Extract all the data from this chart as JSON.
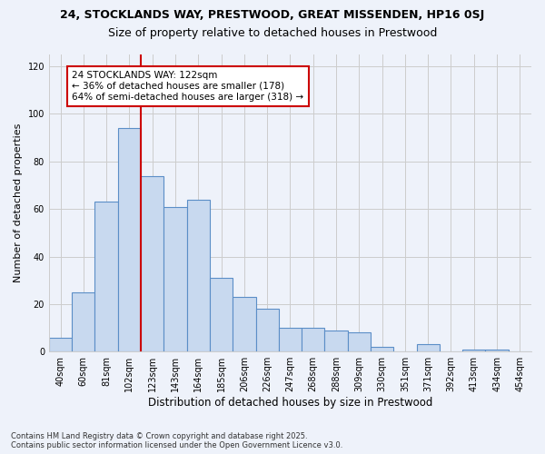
{
  "title_line1": "24, STOCKLANDS WAY, PRESTWOOD, GREAT MISSENDEN, HP16 0SJ",
  "title_line2": "Size of property relative to detached houses in Prestwood",
  "xlabel": "Distribution of detached houses by size in Prestwood",
  "ylabel": "Number of detached properties",
  "bar_labels": [
    "40sqm",
    "60sqm",
    "81sqm",
    "102sqm",
    "123sqm",
    "143sqm",
    "164sqm",
    "185sqm",
    "206sqm",
    "226sqm",
    "247sqm",
    "268sqm",
    "288sqm",
    "309sqm",
    "330sqm",
    "351sqm",
    "371sqm",
    "392sqm",
    "413sqm",
    "434sqm",
    "454sqm"
  ],
  "bar_values": [
    6,
    25,
    63,
    94,
    74,
    61,
    64,
    31,
    23,
    18,
    10,
    10,
    9,
    8,
    2,
    0,
    3,
    0,
    1,
    1,
    0
  ],
  "bar_color": "#c8d9ef",
  "bar_edge_color": "#5b8ec7",
  "vline_x_index": 4,
  "vline_color": "#cc0000",
  "annotation_text": "24 STOCKLANDS WAY: 122sqm\n← 36% of detached houses are smaller (178)\n64% of semi-detached houses are larger (318) →",
  "annotation_box_color": "#ffffff",
  "annotation_box_edge_color": "#cc0000",
  "ylim": [
    0,
    125
  ],
  "yticks": [
    0,
    20,
    40,
    60,
    80,
    100,
    120
  ],
  "grid_color": "#cccccc",
  "background_color": "#eef2fa",
  "footnote": "Contains HM Land Registry data © Crown copyright and database right 2025.\nContains public sector information licensed under the Open Government Licence v3.0.",
  "title_fontsize": 9,
  "subtitle_fontsize": 9,
  "tick_fontsize": 7,
  "ylabel_fontsize": 8,
  "xlabel_fontsize": 8.5,
  "annotation_fontsize": 7.5,
  "footnote_fontsize": 6
}
